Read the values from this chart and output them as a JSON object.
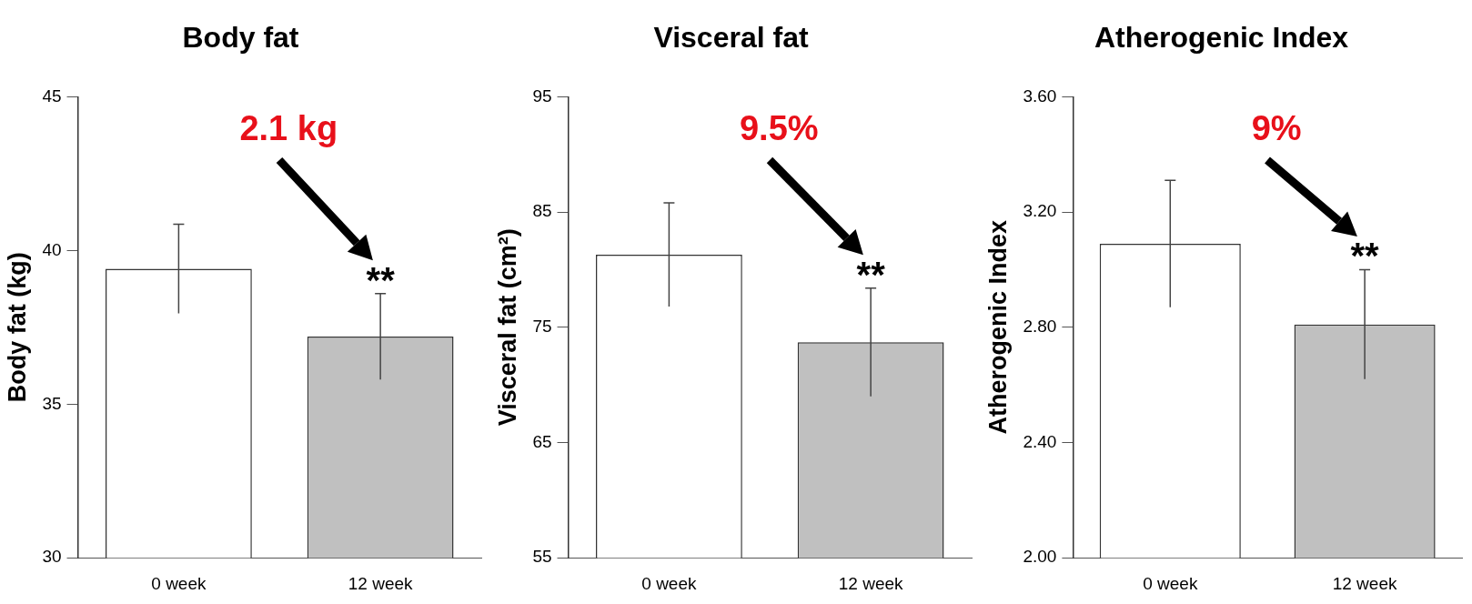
{
  "chart_data": [
    {
      "type": "bar",
      "title": "Body fat",
      "ylabel": "Body fat (kg)",
      "categories": [
        "0 week",
        "12 week"
      ],
      "values": [
        39.4,
        37.2
      ],
      "errors": [
        1.45,
        1.4
      ],
      "colors": [
        "#ffffff",
        "#c0c0c0"
      ],
      "ylim": [
        30,
        45
      ],
      "yticks": [
        30,
        35,
        40,
        45
      ],
      "grid": false,
      "legend": false,
      "annotations": [
        "2.1 kg",
        {
          "text": "**",
          "x": "12 week",
          "y": 38.6
        }
      ]
    },
    {
      "type": "bar",
      "title": "Visceral fat",
      "ylabel": "Visceral fat (cm²)",
      "categories": [
        "0 week",
        "12 week"
      ],
      "values": [
        81.3,
        73.7
      ],
      "errors": [
        4.5,
        4.7
      ],
      "colors": [
        "#ffffff",
        "#c0c0c0"
      ],
      "ylim": [
        55,
        95
      ],
      "yticks": [
        55,
        65,
        75,
        85,
        95
      ],
      "grid": false,
      "legend": false,
      "annotations": [
        "9.5%",
        {
          "text": "**",
          "x": "12 week",
          "y": 78.4
        }
      ]
    },
    {
      "type": "bar",
      "title": "Atherogenic Index",
      "ylabel": "Atherogenic Index",
      "categories": [
        "0 week",
        "12 week"
      ],
      "values": [
        3.09,
        2.81
      ],
      "errors": [
        0.22,
        0.19
      ],
      "colors": [
        "#ffffff",
        "#c0c0c0"
      ],
      "ylim": [
        2.0,
        3.6
      ],
      "yticks": [
        {
          "value": 2.0,
          "label": "2.00"
        },
        {
          "value": 2.4,
          "label": "2.40"
        },
        {
          "value": 2.8,
          "label": "2.80"
        },
        {
          "value": 3.2,
          "label": "3.20"
        },
        {
          "value": 3.6,
          "label": "3.60"
        }
      ],
      "grid": false,
      "legend": false,
      "annotations": [
        "9%",
        {
          "text": "**",
          "x": "12 week",
          "y": 3.0
        }
      ]
    }
  ]
}
